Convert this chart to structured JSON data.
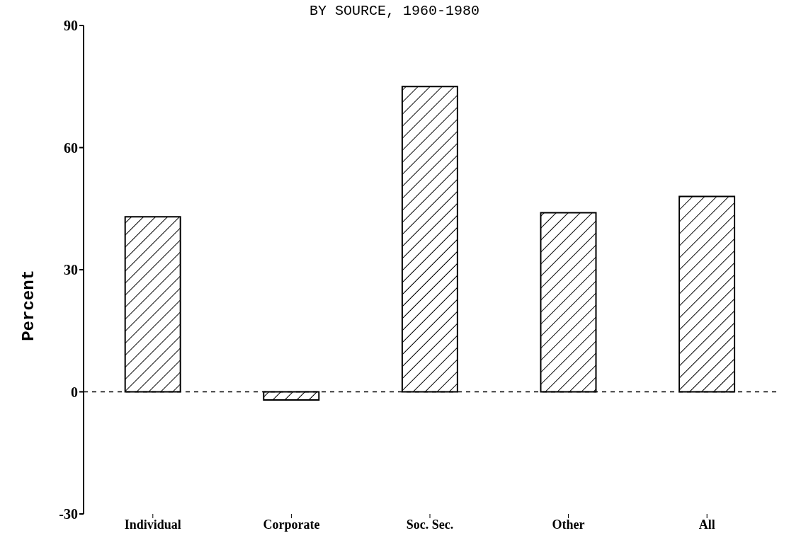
{
  "chart_data": {
    "type": "bar",
    "title": "BY SOURCE, 1960-1980",
    "ylabel": "Percent",
    "categories": [
      "Individual",
      "Corporate",
      "Soc. Sec.",
      "Other",
      "All"
    ],
    "values": [
      43,
      -2,
      75,
      44,
      48
    ],
    "color": "#000000",
    "ylim": [
      -30,
      90
    ],
    "yticks": [
      -30,
      0,
      30,
      60,
      90
    ],
    "ref_lines": [
      {
        "axis": "y",
        "value": 0,
        "line_style": "dashed"
      }
    ]
  }
}
